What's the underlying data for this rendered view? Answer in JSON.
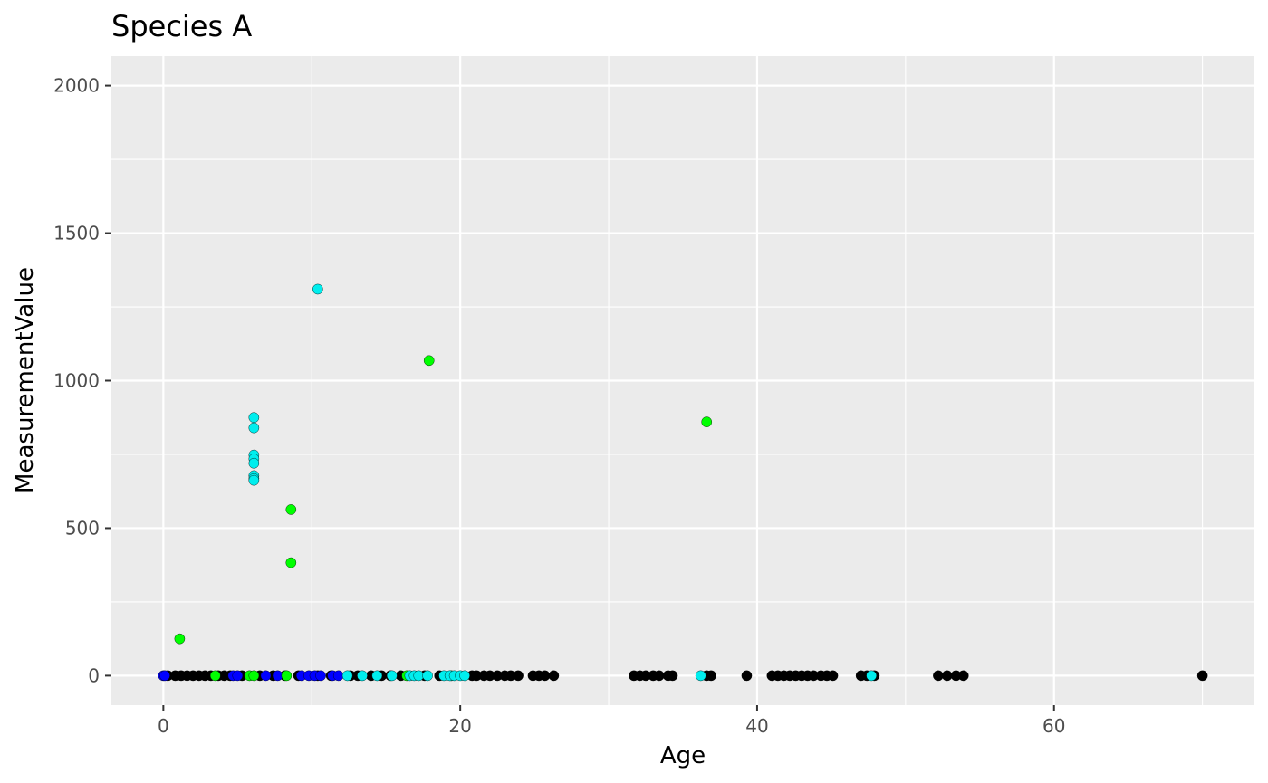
{
  "chart_data": {
    "type": "scatter",
    "title": "Species A",
    "xlabel": "Age",
    "ylabel": "MeasurementValue",
    "xlim": [
      -3.5,
      73.5
    ],
    "ylim": [
      -100,
      2100
    ],
    "x_ticks": [
      0,
      20,
      40,
      60
    ],
    "y_ticks": [
      0,
      500,
      1000,
      1500,
      2000
    ],
    "x_tick_labels": [
      "0",
      "20",
      "40",
      "60"
    ],
    "y_tick_labels": [
      "0",
      "500",
      "1000",
      "1500",
      "2000"
    ],
    "grid": true,
    "legend": "none",
    "panel_background": "#ebebeb",
    "series": [
      {
        "color": "#000000",
        "x": [
          0.3,
          0.8,
          1.2,
          1.6,
          2.0,
          2.4,
          2.8,
          3.2,
          3.7,
          4.1,
          4.5,
          5.3,
          6.5,
          7.4,
          8.2,
          9.1,
          10.4,
          11.3,
          12.6,
          13.1,
          14.0,
          14.7,
          15.3,
          16.0,
          17.6,
          18.6,
          20.8,
          21.1,
          21.6,
          22.0,
          22.5,
          23.0,
          23.4,
          23.9,
          24.9,
          25.3,
          25.7,
          26.3,
          31.7,
          32.1,
          32.5,
          33.0,
          33.4,
          34.0,
          34.3,
          36.6,
          36.9,
          39.3,
          41.0,
          41.4,
          41.8,
          42.2,
          42.6,
          43.0,
          43.4,
          43.8,
          44.3,
          44.7,
          45.1,
          47.0,
          47.4,
          47.9,
          52.2,
          52.8,
          53.4,
          53.9,
          70.0
        ],
        "y": [
          0,
          0,
          0,
          0,
          0,
          0,
          0,
          0,
          0,
          0,
          0,
          0,
          0,
          0,
          0,
          0,
          0,
          0,
          0,
          0,
          0,
          0,
          0,
          0,
          0,
          0,
          0,
          0,
          0,
          0,
          0,
          0,
          0,
          0,
          0,
          0,
          0,
          0,
          0,
          0,
          0,
          0,
          0,
          0,
          0,
          0,
          0,
          0,
          0,
          0,
          0,
          0,
          0,
          0,
          0,
          0,
          0,
          0,
          0,
          0,
          0,
          0,
          0,
          0,
          0,
          0,
          0
        ]
      },
      {
        "color": "#0000ff",
        "x": [
          0.0,
          0.1,
          4.7,
          5.0,
          6.9,
          7.7,
          9.3,
          9.8,
          10.2,
          10.6,
          11.4,
          11.8
        ],
        "y": [
          0,
          0,
          0,
          0,
          0,
          0,
          0,
          0,
          0,
          0,
          0,
          0
        ]
      },
      {
        "color": "#00ff00",
        "x": [
          1.1,
          8.6,
          8.6,
          17.9,
          36.6,
          3.5,
          5.8,
          6.1,
          8.3,
          16.4,
          19.4
        ],
        "y": [
          125,
          563,
          383,
          1068,
          860,
          0,
          0,
          0,
          0,
          0,
          0
        ]
      },
      {
        "color": "#00eeee",
        "x": [
          10.4,
          6.1,
          6.1,
          6.1,
          6.1,
          6.1,
          6.1,
          6.1,
          6.1,
          12.4,
          13.4,
          14.4,
          15.4,
          16.6,
          16.9,
          17.2,
          17.8,
          18.9,
          19.3,
          19.6,
          20.0,
          20.3,
          36.2,
          47.7
        ],
        "y": [
          1310,
          875,
          840,
          748,
          735,
          720,
          678,
          668,
          662,
          0,
          0,
          0,
          0,
          0,
          0,
          0,
          0,
          0,
          0,
          0,
          0,
          0,
          0,
          0
        ]
      }
    ]
  }
}
